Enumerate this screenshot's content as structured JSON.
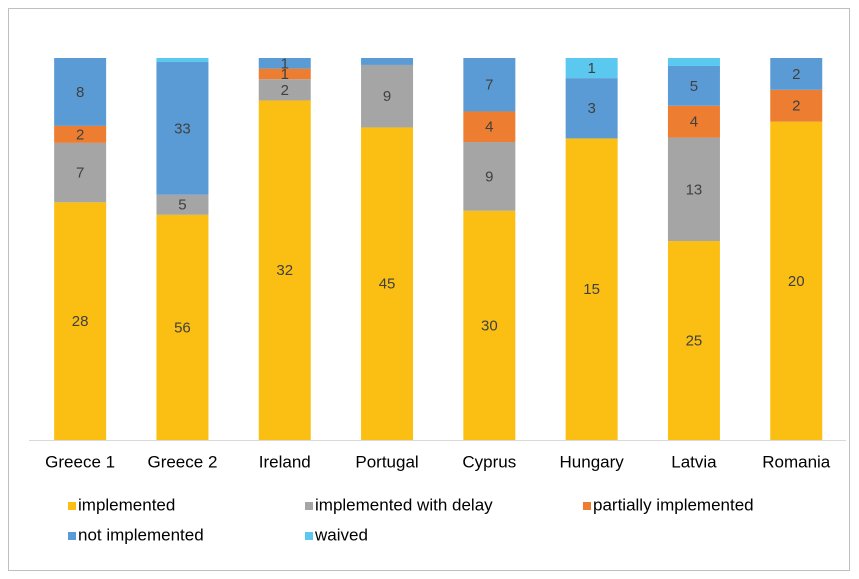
{
  "chart_data": {
    "type": "stacked_bar_100",
    "categories": [
      "Greece 1",
      "Greece 2",
      "Ireland",
      "Portugal",
      "Cyprus",
      "Hungary",
      "Latvia",
      "Romania"
    ],
    "series": [
      {
        "name": "implemented",
        "color": "#fbbf14",
        "values": [
          28,
          56,
          32,
          45,
          30,
          15,
          25,
          20
        ]
      },
      {
        "name": "implemented with delay",
        "color": "#a5a5a5",
        "values": [
          7,
          5,
          2,
          9,
          9,
          null,
          13,
          null
        ]
      },
      {
        "name": "partially implemented",
        "color": "#ed7d31",
        "values": [
          2,
          null,
          1,
          null,
          4,
          null,
          4,
          2
        ]
      },
      {
        "name": "not implemented",
        "color": "#5b9bd5",
        "values": [
          8,
          33,
          1,
          1,
          7,
          3,
          5,
          2
        ]
      },
      {
        "name": "waived",
        "color": "#5bc8f0",
        "values": [
          null,
          1,
          null,
          null,
          null,
          1,
          1,
          null
        ]
      }
    ],
    "legend": "bottom"
  }
}
